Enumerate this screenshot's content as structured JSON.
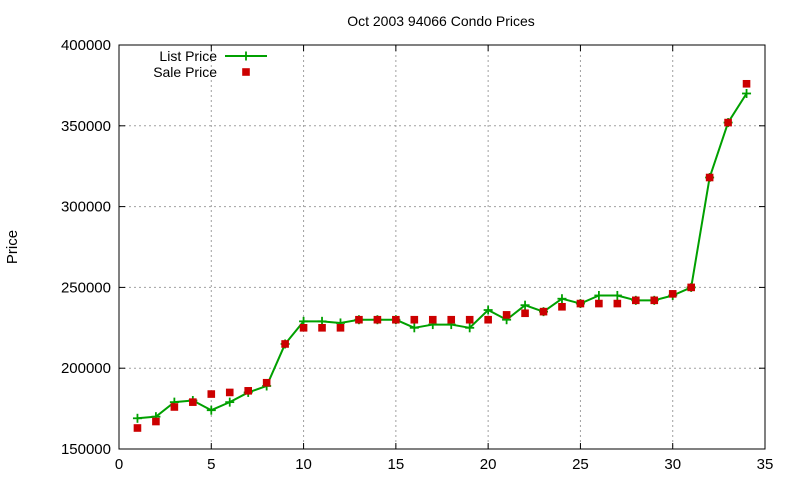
{
  "chart_data": {
    "type": "line",
    "title": "Oct 2003 94066 Condo Prices",
    "xlabel": "",
    "ylabel": "Price",
    "xlim": [
      0,
      35
    ],
    "ylim": [
      150000,
      400000
    ],
    "xticks": [
      0,
      5,
      10,
      15,
      20,
      25,
      30,
      35
    ],
    "yticks": [
      150000,
      200000,
      250000,
      300000,
      350000,
      400000
    ],
    "grid": true,
    "legend_position": "top-left",
    "series": [
      {
        "name": "List Price",
        "style": "linespoints",
        "color": "#00a000",
        "x": [
          1,
          2,
          3,
          4,
          5,
          6,
          7,
          8,
          9,
          10,
          11,
          12,
          13,
          14,
          15,
          16,
          17,
          18,
          19,
          20,
          21,
          22,
          23,
          24,
          25,
          26,
          27,
          28,
          29,
          30,
          31,
          32,
          33,
          34
        ],
        "y": [
          169000,
          170000,
          179000,
          180000,
          174000,
          179000,
          185000,
          189000,
          215000,
          229000,
          229000,
          228000,
          230000,
          230000,
          230000,
          225000,
          227000,
          227000,
          225000,
          236000,
          230000,
          239000,
          235000,
          243000,
          240000,
          245000,
          245000,
          242000,
          242000,
          245000,
          250000,
          318000,
          352000,
          370000
        ]
      },
      {
        "name": "Sale Price",
        "style": "points",
        "color": "#cc0000",
        "x": [
          1,
          2,
          3,
          4,
          5,
          6,
          7,
          8,
          9,
          10,
          11,
          12,
          13,
          14,
          15,
          16,
          17,
          18,
          19,
          20,
          21,
          22,
          23,
          24,
          25,
          26,
          27,
          28,
          29,
          30,
          31,
          32,
          33,
          34
        ],
        "y": [
          163000,
          167000,
          176000,
          179000,
          184000,
          185000,
          186000,
          191000,
          215000,
          225000,
          225000,
          225000,
          230000,
          230000,
          230000,
          230000,
          230000,
          230000,
          230000,
          230000,
          233000,
          234000,
          235000,
          238000,
          240000,
          240000,
          240000,
          242000,
          242000,
          246000,
          250000,
          318000,
          352000,
          376000
        ]
      }
    ]
  }
}
